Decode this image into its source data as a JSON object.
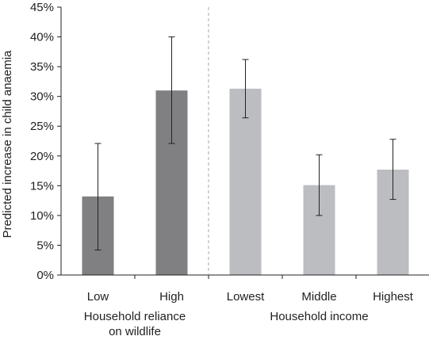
{
  "chart_data": {
    "type": "bar",
    "ylabel": "Predicted increase in child anaemia",
    "ylim": [
      0,
      45
    ],
    "yticks": [
      0,
      5,
      10,
      15,
      20,
      25,
      30,
      35,
      40,
      45
    ],
    "ytick_labels": [
      "0%",
      "5%",
      "10%",
      "15%",
      "20%",
      "25%",
      "30%",
      "35%",
      "40%",
      "45%"
    ],
    "grid": false,
    "groups": [
      {
        "label": "Household reliance on wildlife",
        "label_lines": [
          "Household reliance",
          "on wildlife"
        ],
        "color": "#808083",
        "bars": [
          {
            "category": "Low",
            "value": 13.2,
            "error_low": 4.2,
            "error_high": 22.1
          },
          {
            "category": "High",
            "value": 31.0,
            "error_low": 22.1,
            "error_high": 40.0
          }
        ]
      },
      {
        "label": "Household income",
        "label_lines": [
          "Household income"
        ],
        "color": "#bcbdc0",
        "bars": [
          {
            "category": "Lowest",
            "value": 31.3,
            "error_low": 26.4,
            "error_high": 36.2
          },
          {
            "category": "Middle",
            "value": 15.1,
            "error_low": 10.0,
            "error_high": 20.2
          },
          {
            "category": "Highest",
            "value": 17.7,
            "error_low": 12.7,
            "error_high": 22.8
          }
        ]
      }
    ],
    "separator": "dashed line between groups"
  },
  "colors": {
    "axis": "#222222",
    "error_bar": "#222222",
    "separator": "#aaaaaa"
  }
}
